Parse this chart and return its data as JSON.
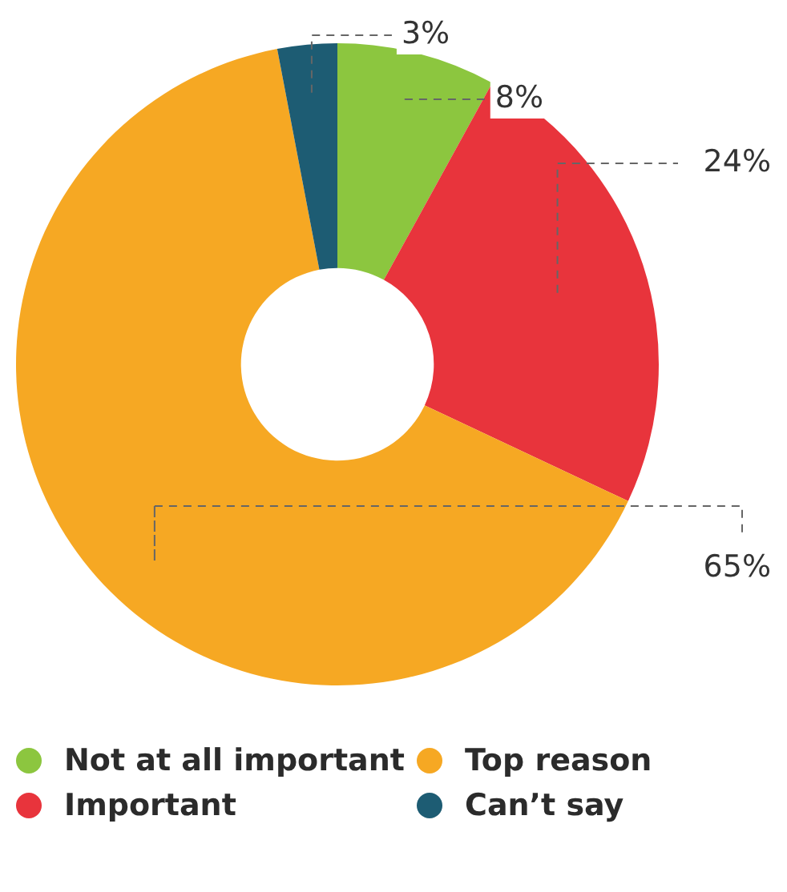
{
  "chart_data": {
    "type": "donut",
    "categories": [
      "Not at all important",
      "Important",
      "Top reason",
      "Can’t say"
    ],
    "values": [
      8,
      24,
      65,
      3
    ],
    "colors": [
      "#8cc63f",
      "#e8343c",
      "#f6a823",
      "#1d5c73"
    ],
    "value_labels": [
      "8%",
      "24%",
      "65%",
      "3%"
    ],
    "legend": "bottom"
  }
}
